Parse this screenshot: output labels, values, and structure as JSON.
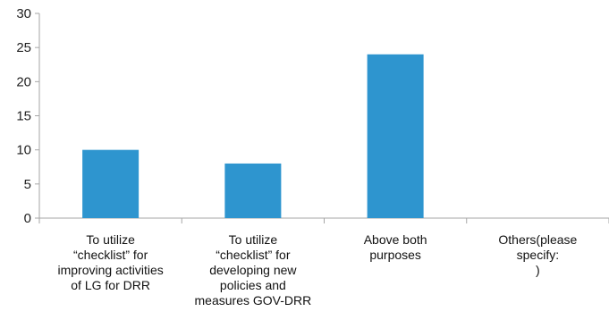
{
  "chart_data": {
    "type": "bar",
    "categories": [
      "To utilize\n“checklist” for\nimproving activities\nof LG for DRR",
      "To utilize\n“checklist” for\ndeveloping new\npolicies and\nmeasures GOV-DRR",
      "Above both\npurposes",
      "Others(please\nspecify:\n)"
    ],
    "values": [
      10,
      8,
      24,
      0
    ],
    "ylim": [
      0,
      30
    ],
    "yticks": [
      0,
      5,
      10,
      15,
      20,
      25,
      30
    ],
    "grid": false,
    "bar_color": "#2e95cf",
    "axis_color": "#a6a6a6"
  }
}
